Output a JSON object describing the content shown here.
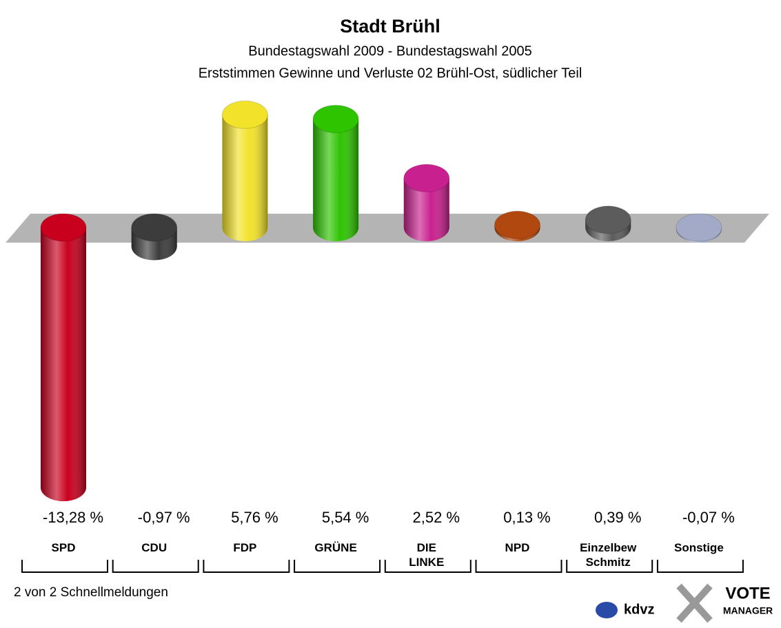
{
  "chart_data": {
    "type": "bar",
    "title": "Stadt Brühl",
    "subtitle": "Bundestagswahl 2009 - Bundestagswahl 2005",
    "subtitle2": "Erststimmen Gewinne und Verluste 02 Brühl-Ost, südlicher Teil",
    "categories": [
      "SPD",
      "CDU",
      "FDP",
      "GRÜNE",
      "DIE\nLINKE",
      "NPD",
      "Einzelbew\nSchmitz",
      "Sonstige"
    ],
    "values": [
      -13.28,
      -0.97,
      5.76,
      5.54,
      2.52,
      0.13,
      0.39,
      -0.07
    ],
    "value_labels": [
      "-13,28 %",
      "-0,97 %",
      "5,76 %",
      "5,54 %",
      "2,52 %",
      "0,13 %",
      "0,39 %",
      "-0,07 %"
    ],
    "colors": [
      "#c8001e",
      "#3c3c3c",
      "#f2e22a",
      "#2ec400",
      "#c8208e",
      "#b04810",
      "#5c5c5c",
      "#a2aac8"
    ],
    "footnote": "2 von 2 Schnellmeldungen",
    "logo_left": "kdvz",
    "logo_right": [
      "VOTE",
      "MANAGER"
    ]
  }
}
